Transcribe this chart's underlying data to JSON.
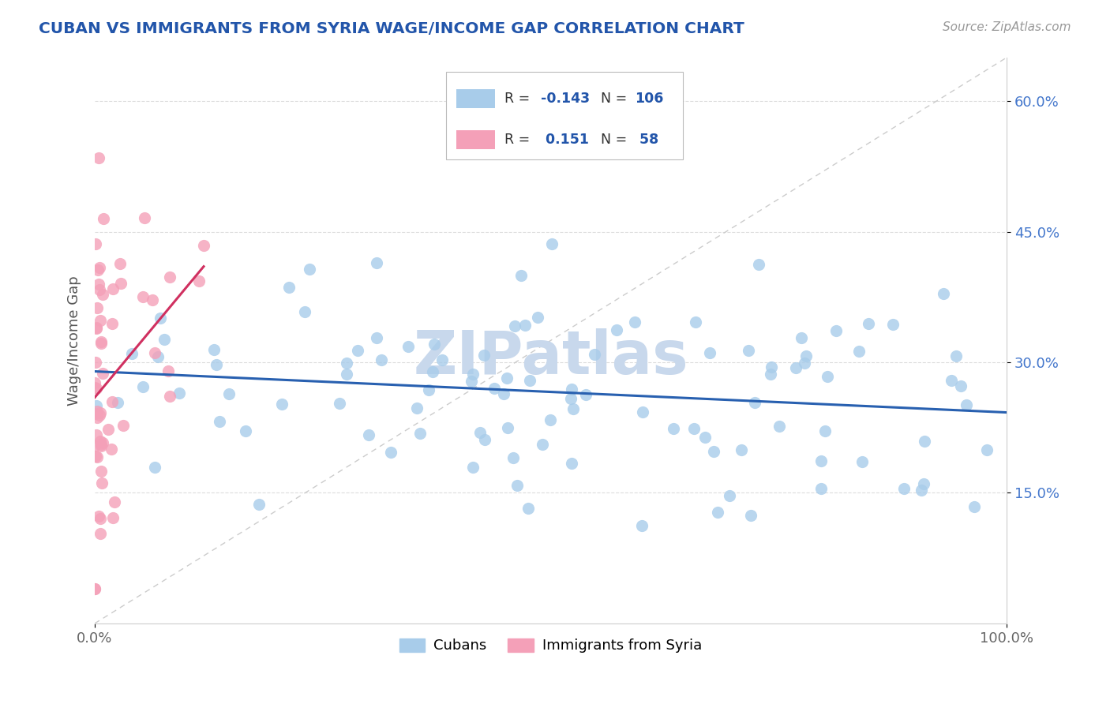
{
  "title": "CUBAN VS IMMIGRANTS FROM SYRIA WAGE/INCOME GAP CORRELATION CHART",
  "source_text": "Source: ZipAtlas.com",
  "ylabel": "Wage/Income Gap",
  "xlim": [
    0.0,
    1.0
  ],
  "ylim": [
    0.0,
    0.65
  ],
  "yticks": [
    0.15,
    0.3,
    0.45,
    0.6
  ],
  "ytick_labels": [
    "15.0%",
    "30.0%",
    "45.0%",
    "60.0%"
  ],
  "xtick_labels": [
    "0.0%",
    "100.0%"
  ],
  "color_blue": "#A8CCEA",
  "color_pink": "#F4A0B8",
  "color_blue_line": "#2860B0",
  "color_pink_line": "#D03060",
  "color_diag": "#CCCCCC",
  "watermark": "ZIPatlas",
  "watermark_color": "#C8D8EC",
  "title_color": "#2255AA",
  "r_value_color": "#2255AA",
  "background_color": "#FFFFFF",
  "seed": 7,
  "n_blue": 106,
  "n_pink": 58,
  "r_blue": -0.143,
  "r_pink": 0.151
}
